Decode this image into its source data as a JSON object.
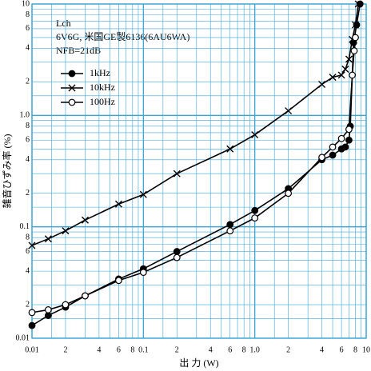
{
  "chart_data": {
    "type": "line",
    "annotations": [
      "Lch",
      "6V6G, 米国GE製6136(6AU6WA)",
      "NFB=21dB"
    ],
    "xlabel": "出 力 (W)",
    "ylabel": "雑音ひずみ率 (%)",
    "xlog": true,
    "ylog": true,
    "grid": true,
    "legend": "upper left",
    "xlim": [
      0.01,
      10
    ],
    "ylim": [
      0.01,
      10
    ],
    "xticks": [
      0.01,
      {
        "value": 0.02,
        "label": "2"
      },
      {
        "value": 0.04,
        "label": "4"
      },
      {
        "value": 0.06,
        "label": "6"
      },
      {
        "value": 0.08,
        "label": "8"
      },
      0.1,
      {
        "value": 0.2,
        "label": "2"
      },
      {
        "value": 0.4,
        "label": "4"
      },
      {
        "value": 0.6,
        "label": "6"
      },
      {
        "value": 0.8,
        "label": "8"
      },
      {
        "value": 1,
        "label": "1.0"
      },
      {
        "value": 2,
        "label": "2"
      },
      {
        "value": 4,
        "label": "4"
      },
      {
        "value": 6,
        "label": "6"
      },
      {
        "value": 8,
        "label": "8"
      },
      10
    ],
    "yticks": [
      0.01,
      {
        "value": 0.02,
        "label": "2"
      },
      {
        "value": 0.04,
        "label": "4"
      },
      {
        "value": 0.06,
        "label": "6"
      },
      {
        "value": 0.08,
        "label": "8"
      },
      0.1,
      {
        "value": 0.2,
        "label": "2"
      },
      {
        "value": 0.4,
        "label": "4"
      },
      {
        "value": 0.6,
        "label": "6"
      },
      {
        "value": 0.8,
        "label": "8"
      },
      {
        "value": 1,
        "label": "1.0"
      },
      {
        "value": 2,
        "label": "2"
      },
      {
        "value": 4,
        "label": "4"
      },
      {
        "value": 6,
        "label": "6"
      },
      {
        "value": 8,
        "label": "8"
      },
      10
    ],
    "minor_grid": [
      0.015,
      0.03,
      0.05,
      0.07,
      0.09,
      0.15,
      0.3,
      0.5,
      0.7,
      0.9,
      1.5,
      3,
      5,
      7,
      9
    ],
    "grid_color": "#3aa6d8",
    "series": [
      {
        "name": "1kHz",
        "color": "#000000",
        "marker": "disc",
        "x": [
          0.01,
          0.014,
          0.02,
          0.03,
          0.06,
          0.1,
          0.2,
          0.6,
          1.0,
          2,
          4,
          5,
          6,
          6.5,
          7,
          7.2,
          7.7,
          8.2,
          8.8
        ],
        "values": [
          0.013,
          0.016,
          0.019,
          0.024,
          0.034,
          0.042,
          0.06,
          0.105,
          0.14,
          0.22,
          0.4,
          0.44,
          0.5,
          0.52,
          0.6,
          0.8,
          4.5,
          6.5,
          10
        ]
      },
      {
        "name": "10kHz",
        "color": "#000000",
        "marker": "x",
        "x": [
          0.01,
          0.014,
          0.02,
          0.03,
          0.06,
          0.1,
          0.2,
          0.6,
          1.0,
          2,
          4,
          5,
          6,
          6.5,
          7,
          7.5,
          8,
          8.5
        ],
        "values": [
          0.068,
          0.078,
          0.092,
          0.115,
          0.16,
          0.195,
          0.3,
          0.5,
          0.67,
          1.1,
          1.9,
          2.2,
          2.3,
          2.6,
          3.2,
          4.8,
          6.5,
          10
        ]
      },
      {
        "name": "100Hz",
        "color": "#000000",
        "marker": "circle",
        "x": [
          0.01,
          0.014,
          0.02,
          0.03,
          0.06,
          0.1,
          0.2,
          0.6,
          1.0,
          2,
          4,
          5,
          6,
          7,
          7.5,
          7.8,
          8
        ],
        "values": [
          0.017,
          0.018,
          0.02,
          0.024,
          0.033,
          0.039,
          0.053,
          0.092,
          0.12,
          0.2,
          0.42,
          0.52,
          0.62,
          0.75,
          2.3,
          3.8,
          5
        ]
      }
    ]
  }
}
